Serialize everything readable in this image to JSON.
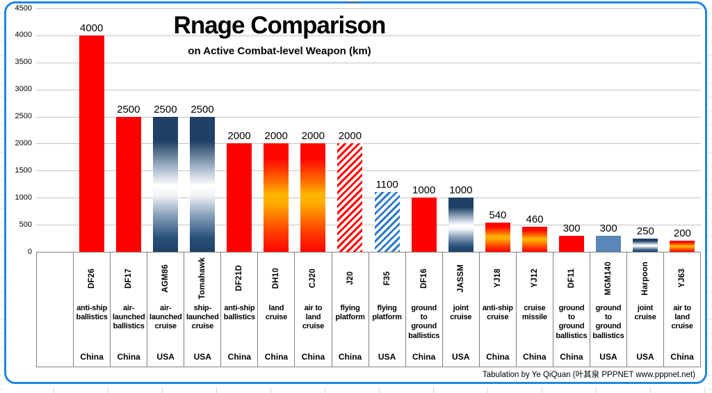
{
  "header": {
    "title": "Rnage Comparison",
    "subtitle": "on Active Combat-level Weapon (km)"
  },
  "footer": {
    "attribution": "Tabulation by Ye QiQuan (叶其泉 PPPNET www.pppnet.net)"
  },
  "chart_data": {
    "type": "bar",
    "title": "Rnage Comparison",
    "subtitle": "on Active Combat-level Weapon (km)",
    "unit": "km",
    "ylim": [
      0,
      4500
    ],
    "yticks": [
      0,
      500,
      1000,
      1500,
      2000,
      2500,
      3000,
      3500,
      4000,
      4500
    ],
    "grid": true,
    "legend": false,
    "leading_empty_column": true,
    "categories": [
      "DF26",
      "DF17",
      "AGM86",
      "Tomahawk",
      "DF21D",
      "DH10",
      "CJ20",
      "J20",
      "F35",
      "DF16",
      "JASSM",
      "YJ18",
      "YJ12",
      "DF11",
      "MGM140",
      "Harpoon",
      "YJ63"
    ],
    "values": [
      4000,
      2500,
      2500,
      2500,
      2000,
      2000,
      2000,
      2000,
      1100,
      1000,
      1000,
      540,
      460,
      300,
      300,
      250,
      200
    ],
    "fills": [
      "red",
      "red",
      "navy",
      "navy",
      "red",
      "fire",
      "fire",
      "hatch-red",
      "hatch-blue",
      "red",
      "navy",
      "fire",
      "fire",
      "red",
      "steel",
      "navy",
      "fire"
    ],
    "types": [
      "anti-ship\nballistics",
      "air-\nlaunched\nballistics",
      "air-\nlaunched\ncruise",
      "ship-\nlaunched\ncruise",
      "anti-ship\nballistics",
      "land\ncruise",
      "air to\nland\ncruise",
      "flying\nplatform",
      "flying\nplatform",
      "ground\nto\nground\nballistics",
      "joint\ncruise",
      "anti-ship\ncruise",
      "cruise\nmissile",
      "ground\nto\nground\nballistics",
      "ground\nto\nground\nballistics",
      "joint\ncruise",
      "air to\nland\ncruise"
    ],
    "countries": [
      "China",
      "China",
      "USA",
      "USA",
      "China",
      "China",
      "China",
      "China",
      "USA",
      "China",
      "USA",
      "China",
      "China",
      "China",
      "USA",
      "USA",
      "China"
    ]
  },
  "colors": {
    "bar_red": "#fe0000",
    "bar_navy": "#1e4165",
    "bar_fire_mid": "#ffb400",
    "bar_steel": "#5a86b8",
    "hatch_blue": "#2e79c0",
    "selection_frame": "#1f86e5",
    "gridline": "#c2c2c2",
    "table_border": "#7f7f7f"
  }
}
